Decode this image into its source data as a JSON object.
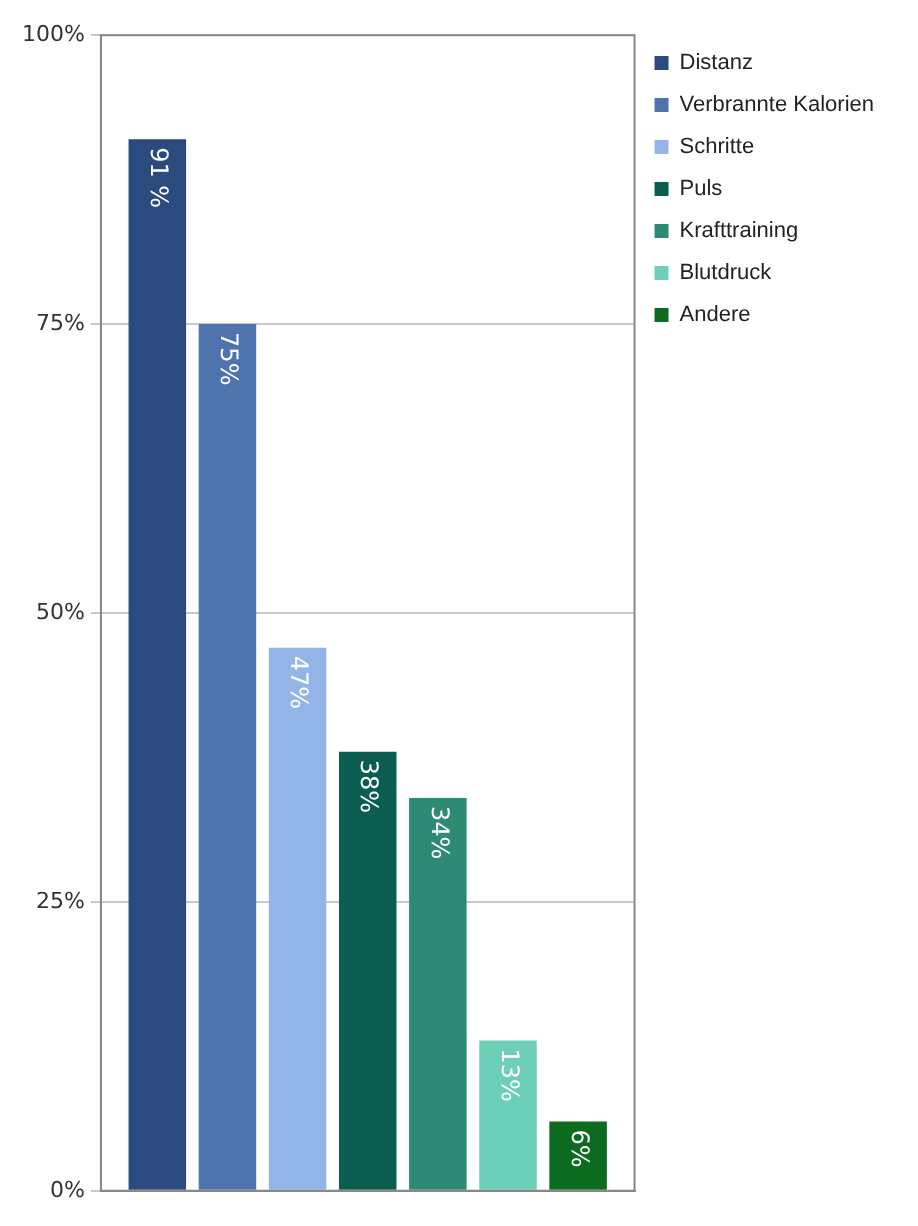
{
  "chart_data": {
    "type": "bar",
    "categories": [
      null
    ],
    "series": [
      {
        "name": "Distanz",
        "color": "#2b4a7e",
        "values": [
          91
        ],
        "value_labels": [
          "91 %"
        ]
      },
      {
        "name": "Verbrannte Kalorien",
        "color": "#4f73ad",
        "values": [
          75
        ],
        "value_labels": [
          "75%"
        ]
      },
      {
        "name": "Schritte",
        "color": "#93b4e6",
        "values": [
          47
        ],
        "value_labels": [
          "47%"
        ]
      },
      {
        "name": "Puls",
        "color": "#0b5e4f",
        "values": [
          38
        ],
        "value_labels": [
          "38%"
        ]
      },
      {
        "name": "Krafttraining",
        "color": "#2e8a74",
        "values": [
          34
        ],
        "value_labels": [
          "34%"
        ]
      },
      {
        "name": "Blutdruck",
        "color": "#6ecfb9",
        "values": [
          13
        ],
        "value_labels": [
          "13%"
        ]
      },
      {
        "name": "Andere",
        "color": "#0d6b1f",
        "values": [
          6
        ],
        "value_labels": [
          "6%"
        ]
      }
    ],
    "ylim": [
      0,
      100
    ],
    "yticks": [
      {
        "value": 0,
        "label": "0%"
      },
      {
        "value": 25,
        "label": "25%"
      },
      {
        "value": 50,
        "label": "50%"
      },
      {
        "value": 75,
        "label": "75%"
      },
      {
        "value": 100,
        "label": "100%"
      }
    ],
    "grid": "y",
    "legend": "top right"
  }
}
